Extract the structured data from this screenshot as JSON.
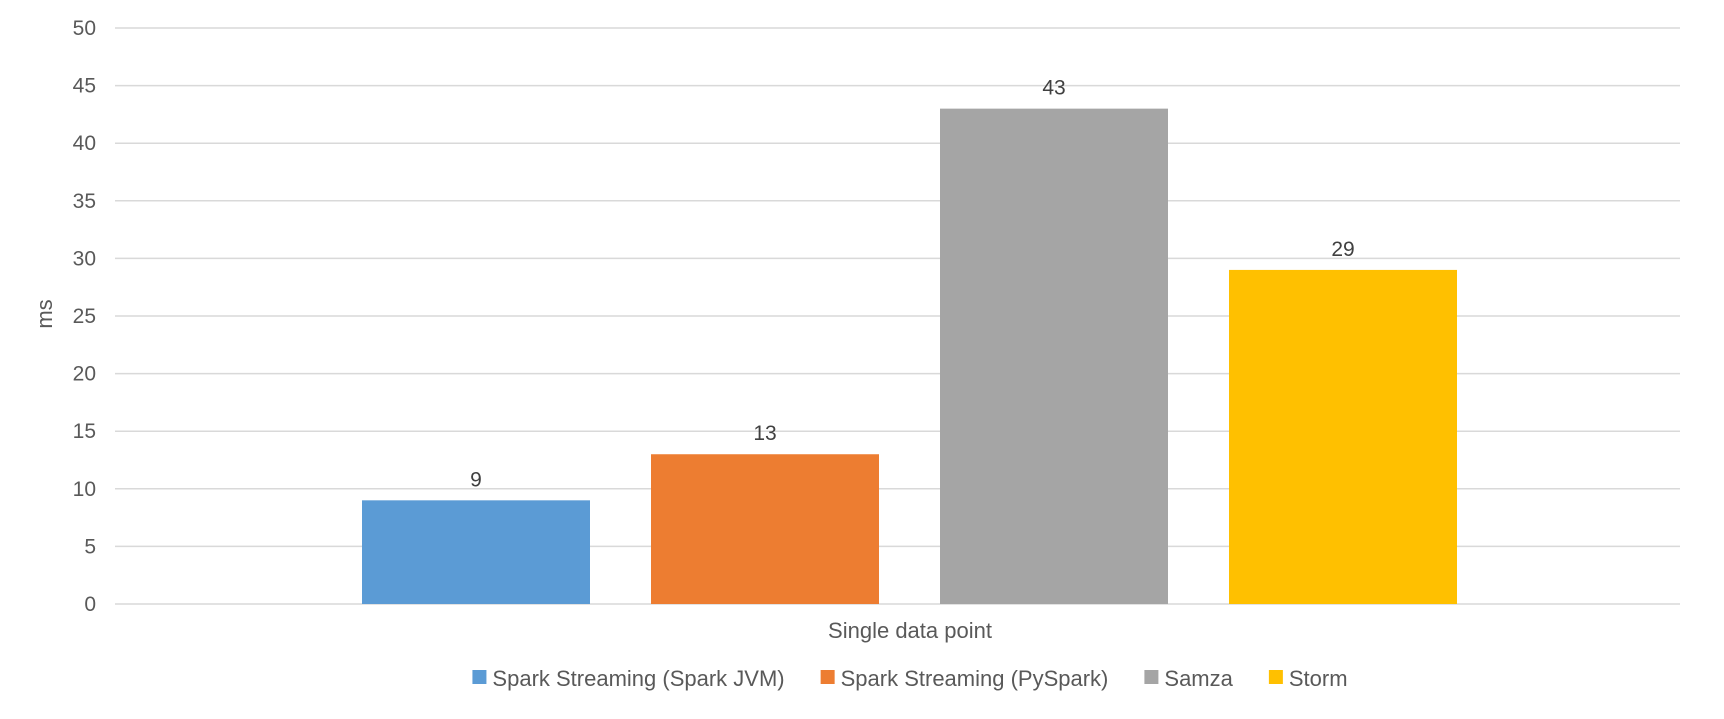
{
  "chart_data": {
    "type": "bar",
    "title": "",
    "xlabel": "",
    "ylabel": "ms",
    "category_label": "Single data point",
    "ylim": [
      0,
      50
    ],
    "ytick_step": 5,
    "yticks": [
      "0",
      "5",
      "10",
      "15",
      "20",
      "25",
      "30",
      "35",
      "40",
      "45",
      "50"
    ],
    "grid": true,
    "legend_position": "bottom",
    "series": [
      {
        "name": "Spark Streaming (Spark JVM)",
        "value": 9,
        "label": "9",
        "color": "#5B9BD5"
      },
      {
        "name": "Spark Streaming (PySpark)",
        "value": 13,
        "label": "13",
        "color": "#ED7D31"
      },
      {
        "name": "Samza",
        "value": 43,
        "label": "43",
        "color": "#A5A5A5"
      },
      {
        "name": "Storm",
        "value": 29,
        "label": "29",
        "color": "#FFC000"
      }
    ]
  }
}
